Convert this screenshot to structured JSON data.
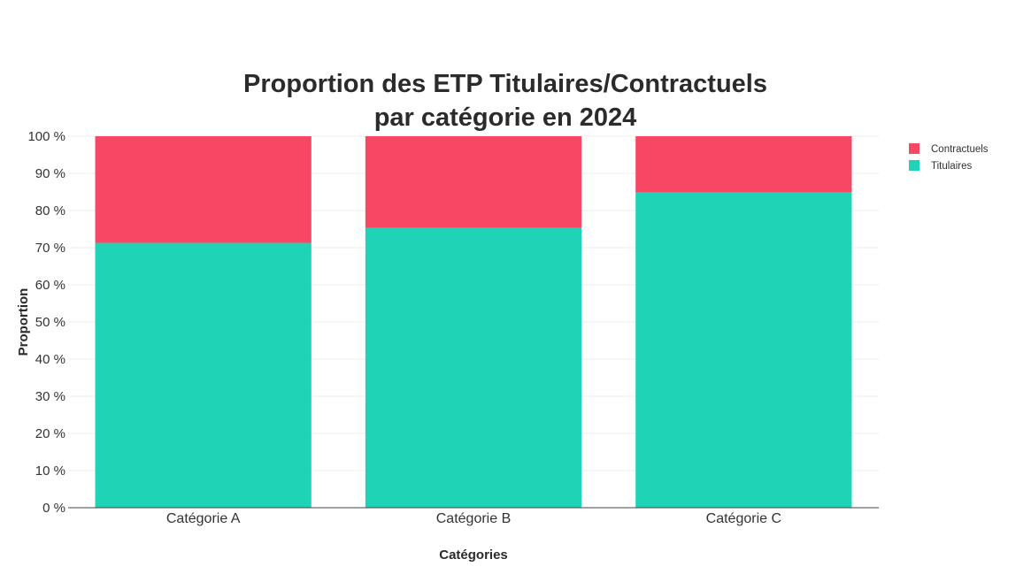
{
  "chart_data": {
    "type": "bar",
    "stacked": true,
    "title_lines": [
      "Proportion des ETP Titulaires/Contractuels",
      "par catégorie en 2024"
    ],
    "xlabel": "Catégories",
    "ylabel": "Proportion",
    "categories": [
      "Catégorie A",
      "Catégorie B",
      "Catégorie C"
    ],
    "series": [
      {
        "name": "Titulaires",
        "color": "#1ed3b6",
        "values": [
          71.3,
          75.3,
          84.9
        ]
      },
      {
        "name": "Contractuels",
        "color": "#f64865",
        "values": [
          28.7,
          24.7,
          15.1
        ]
      }
    ],
    "legend_order": [
      "Contractuels",
      "Titulaires"
    ],
    "y_ticks": [
      "0 %",
      "10 %",
      "20 %",
      "30 %",
      "40 %",
      "50 %",
      "60 %",
      "70 %",
      "80 %",
      "90 %",
      "100 %"
    ],
    "ylim": [
      0,
      100
    ],
    "grid": true,
    "legend_position": "top-right"
  }
}
